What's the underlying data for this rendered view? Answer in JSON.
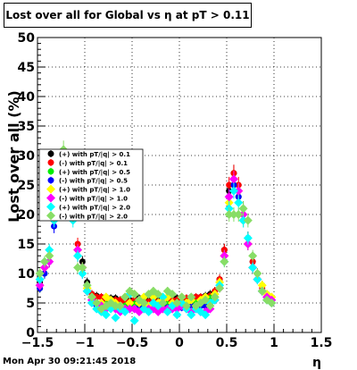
{
  "title": "Lost over all for Global vs   η at pT > 0.11",
  "footer_date": "Mon Apr 30 09:21:45 2018",
  "chart_data": {
    "type": "scatter",
    "title": "Lost over all for Global vs   η at pT > 0.11",
    "xlabel": "η",
    "ylabel": "Lost over all (%)",
    "xlim": [
      -1.5,
      1.5
    ],
    "ylim": [
      0,
      50
    ],
    "x_ticks": [
      -1.5,
      -1,
      -0.5,
      0,
      0.5,
      1,
      1.5
    ],
    "x_tick_labels": [
      "−1.5",
      "−1",
      "−0.5",
      "0",
      "0.5",
      "1",
      "1.5"
    ],
    "y_ticks": [
      0,
      5,
      10,
      15,
      20,
      25,
      30,
      35,
      40,
      45,
      50
    ],
    "grid": true,
    "legend_position": "left-middle",
    "series": [
      {
        "name": "(+) with pT/|q| > 0.1",
        "color": "#000000",
        "marker": "circle",
        "x_start": -1.475,
        "x_step": 0.05,
        "values": [
          8.5,
          11,
          13,
          21,
          25,
          26,
          28,
          22,
          14,
          12,
          8.5,
          6.5,
          6.2,
          6,
          6,
          5.8,
          5.8,
          5.5,
          5.5,
          5.5,
          5.5,
          5.8,
          5.5,
          5.5,
          5.8,
          5.5,
          5.5,
          5.5,
          5.8,
          5.8,
          5.8,
          5.8,
          6,
          6,
          6,
          6.2,
          6.5,
          7,
          9,
          14,
          24,
          27,
          24,
          21,
          16,
          12,
          10,
          8,
          6.5,
          5.5
        ]
      },
      {
        "name": "(-) with pT/|q| > 0.1",
        "color": "#ff0000",
        "marker": "circle",
        "x_start": -1.475,
        "x_step": 0.05,
        "values": [
          8,
          11,
          12,
          20,
          26,
          27,
          29,
          22,
          15,
          11,
          8,
          6.5,
          6,
          6,
          5.5,
          5.5,
          5.5,
          5.5,
          5.2,
          5.2,
          5.5,
          5.5,
          5.2,
          5.2,
          5.5,
          5.2,
          5.2,
          5.5,
          5.5,
          5.5,
          5.8,
          5.8,
          5.8,
          6,
          6,
          6,
          6.2,
          7,
          9,
          14,
          25,
          27,
          25,
          20,
          16,
          12,
          10,
          7.5,
          6,
          5.5
        ]
      },
      {
        "name": "(+) with pT/|q| > 0.5",
        "color": "#00ee00",
        "marker": "circle",
        "x_start": -1.475,
        "x_step": 0.05,
        "values": [
          7.5,
          10,
          12,
          19,
          23,
          25,
          27,
          20,
          13,
          11,
          7,
          5.5,
          5,
          5,
          4.8,
          4.8,
          4.8,
          4.5,
          4.5,
          4.5,
          4.8,
          4.8,
          4.5,
          4.5,
          4.5,
          4.5,
          4.5,
          4.8,
          4.8,
          4.8,
          4.8,
          5,
          5,
          5,
          5,
          5.5,
          5.8,
          6.5,
          8,
          13,
          22,
          25,
          23,
          19,
          15,
          11,
          9,
          7,
          5.5,
          5
        ]
      },
      {
        "name": "(-) with pT/|q| > 0.5",
        "color": "#0000ff",
        "marker": "circle",
        "x_start": -1.475,
        "x_step": 0.05,
        "values": [
          7.5,
          10,
          12,
          18,
          24,
          25,
          27,
          21,
          13,
          10,
          7,
          5,
          4.5,
          4.5,
          4.2,
          4.2,
          4.2,
          4.2,
          4,
          4,
          4,
          4.2,
          4,
          4,
          4.2,
          4,
          4,
          4.2,
          4.2,
          4.2,
          4.2,
          4.5,
          4.5,
          4.5,
          4.5,
          4.5,
          5,
          6,
          8,
          13,
          23,
          25,
          23,
          19,
          15,
          11,
          9,
          7,
          5.5,
          5
        ]
      },
      {
        "name": "(+) with pT/|q| > 1.0",
        "color": "#ffff00",
        "marker": "diamond",
        "x_start": -1.475,
        "x_step": 0.05,
        "values": [
          8,
          11,
          13,
          19,
          24,
          26,
          27,
          20,
          14,
          11,
          7.5,
          6,
          5,
          5,
          6,
          5.5,
          5,
          4.5,
          6,
          5,
          6.5,
          5,
          6,
          4.5,
          6,
          5,
          5.5,
          6,
          5,
          4.5,
          6,
          5,
          5.5,
          4.5,
          5.5,
          6,
          5,
          6.5,
          8.5,
          13,
          22,
          26,
          24,
          19,
          15,
          11,
          9,
          8,
          6.5,
          6
        ]
      },
      {
        "name": "(-) with pT/|q| > 1.0",
        "color": "#ff00ff",
        "marker": "diamond",
        "x_start": -1.475,
        "x_step": 0.05,
        "values": [
          8,
          11,
          12,
          20,
          25,
          26,
          28,
          21,
          14,
          11,
          7,
          5.5,
          5,
          4.5,
          4,
          4.5,
          4,
          3.5,
          4,
          4,
          4,
          3.5,
          4,
          4,
          4,
          3.5,
          4,
          4,
          4,
          4,
          4.5,
          4,
          3.5,
          4,
          3.5,
          3.5,
          4,
          5.5,
          7.5,
          13,
          23,
          26,
          24,
          20,
          15,
          11,
          9,
          7,
          6,
          5.5
        ]
      },
      {
        "name": "(+) with pT/|q| > 2.0",
        "color": "#00ffff",
        "marker": "diamond",
        "x_start": -1.475,
        "x_step": 0.05,
        "values": [
          9,
          12,
          14,
          19,
          24,
          25,
          26,
          19,
          13,
          10,
          7,
          5,
          4,
          3.5,
          3,
          4,
          2.5,
          4,
          3.5,
          6.5,
          2,
          5.5,
          4,
          3.5,
          5,
          4.5,
          6,
          3.5,
          4.5,
          3,
          5,
          4,
          3,
          4,
          3.5,
          3,
          5,
          5.5,
          8,
          12,
          21,
          24,
          22,
          19,
          16,
          11,
          9,
          7,
          5.5,
          5
        ]
      },
      {
        "name": "(-) with pT/|q| > 2.0",
        "color": "#88dd66",
        "marker": "diamond",
        "x_start": -1.475,
        "x_step": 0.05,
        "values": [
          10,
          12,
          13,
          20,
          29,
          31,
          25,
          20,
          11,
          11,
          8,
          6,
          5,
          4,
          4.5,
          5,
          4.5,
          4.5,
          6,
          7,
          6.5,
          5.5,
          5,
          6.5,
          7,
          6.5,
          5,
          7,
          6.5,
          5,
          6,
          4.5,
          6,
          4.5,
          5,
          5.5,
          4.5,
          6,
          7.5,
          12,
          20,
          20,
          20,
          21,
          19,
          13,
          10,
          7,
          5.5,
          5
        ]
      }
    ]
  }
}
